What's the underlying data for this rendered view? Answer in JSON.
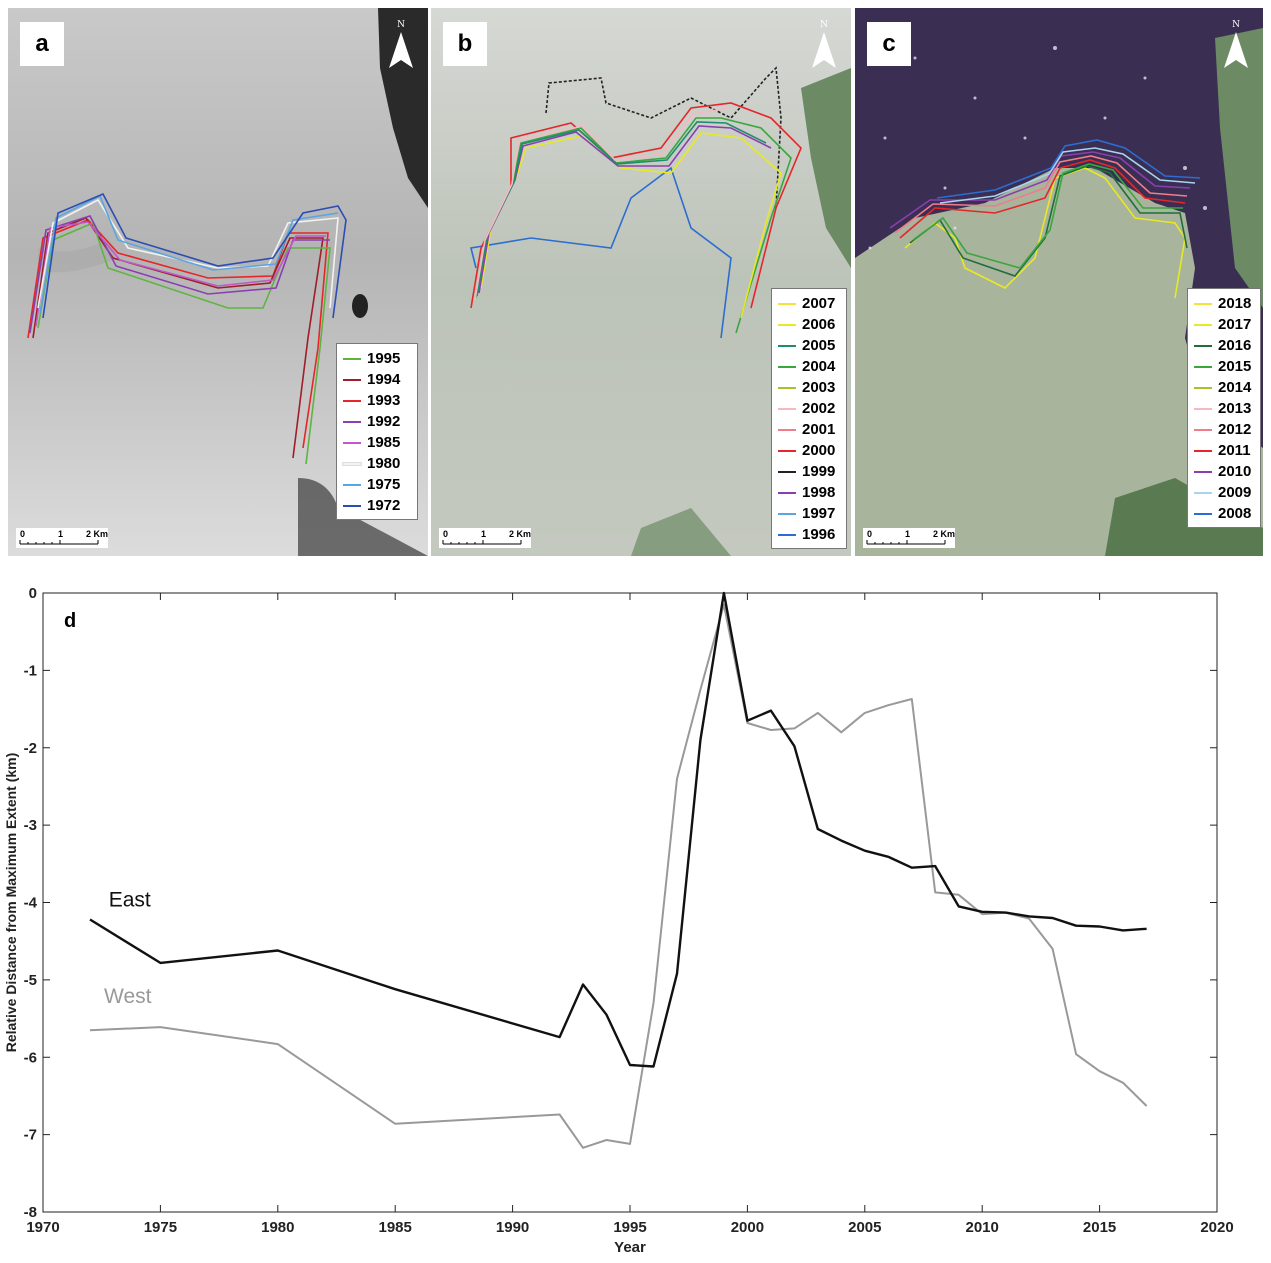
{
  "panels": [
    {
      "letter": "a",
      "north_label": "N",
      "legend": [
        {
          "label": "1995",
          "color": "#5fb441"
        },
        {
          "label": "1994",
          "color": "#a01e28"
        },
        {
          "label": "1993",
          "color": "#e6262a"
        },
        {
          "label": "1992",
          "color": "#8a3fb0"
        },
        {
          "label": "1985",
          "color": "#c058c8"
        },
        {
          "label": "1980",
          "color": "#f2f2f2"
        },
        {
          "label": "1975",
          "color": "#5aa6e0"
        },
        {
          "label": "1972",
          "color": "#2b4db5"
        }
      ],
      "scale": {
        "labels": [
          "0",
          "1",
          "2 Km"
        ]
      }
    },
    {
      "letter": "b",
      "north_label": "N",
      "legend": [
        {
          "label": "2007",
          "color": "#f4e23b"
        },
        {
          "label": "2006",
          "color": "#e8e825"
        },
        {
          "label": "2005",
          "color": "#1f8c6c"
        },
        {
          "label": "2004",
          "color": "#3aa640"
        },
        {
          "label": "2003",
          "color": "#a6c42a"
        },
        {
          "label": "2002",
          "color": "#f6b8c2"
        },
        {
          "label": "2001",
          "color": "#f07c8c"
        },
        {
          "label": "2000",
          "color": "#e6262a"
        },
        {
          "label": "1999",
          "color": "#222222"
        },
        {
          "label": "1998",
          "color": "#8a3fb0"
        },
        {
          "label": "1997",
          "color": "#5aa6e0"
        },
        {
          "label": "1996",
          "color": "#2b6dd0"
        }
      ],
      "scale": {
        "labels": [
          "0",
          "1",
          "2 Km"
        ]
      }
    },
    {
      "letter": "c",
      "north_label": "N",
      "legend": [
        {
          "label": "2018",
          "color": "#f4e23b"
        },
        {
          "label": "2017",
          "color": "#e8e825"
        },
        {
          "label": "2016",
          "color": "#1f6e3c"
        },
        {
          "label": "2015",
          "color": "#3aa640"
        },
        {
          "label": "2014",
          "color": "#a6c42a"
        },
        {
          "label": "2013",
          "color": "#f6b8c2"
        },
        {
          "label": "2012",
          "color": "#f07c8c"
        },
        {
          "label": "2011",
          "color": "#e6262a"
        },
        {
          "label": "2010",
          "color": "#8a3fb0"
        },
        {
          "label": "2009",
          "color": "#a8d4f0"
        },
        {
          "label": "2008",
          "color": "#2b6dd0"
        }
      ],
      "scale": {
        "labels": [
          "0",
          "1",
          "2 Km"
        ]
      }
    }
  ],
  "chart_data": {
    "type": "line",
    "panel_letter": "d",
    "xlabel": "Year",
    "ylabel": "Relative Distance from Maximum Extent (km)",
    "xlim": [
      1970,
      2020
    ],
    "ylim": [
      -8,
      0
    ],
    "xticks": [
      1970,
      1975,
      1980,
      1985,
      1990,
      1995,
      2000,
      2005,
      2010,
      2015,
      2020
    ],
    "yticks": [
      0,
      -1,
      -2,
      -3,
      -4,
      -5,
      -6,
      -7,
      -8
    ],
    "grid": false,
    "legend": "inline labels",
    "series": [
      {
        "name": "East",
        "color": "#111111",
        "label_at": [
          1972.8,
          -4.05
        ],
        "points": [
          [
            1972,
            -4.22
          ],
          [
            1975,
            -4.78
          ],
          [
            1980,
            -4.62
          ],
          [
            1985,
            -5.12
          ],
          [
            1992,
            -5.74
          ],
          [
            1993,
            -5.06
          ],
          [
            1994,
            -5.45
          ],
          [
            1995,
            -6.1
          ],
          [
            1996,
            -6.12
          ],
          [
            1997,
            -4.92
          ],
          [
            1998,
            -1.9
          ],
          [
            1999,
            0.0
          ],
          [
            2000,
            -1.65
          ],
          [
            2001,
            -1.52
          ],
          [
            2002,
            -1.98
          ],
          [
            2003,
            -3.05
          ],
          [
            2004,
            -3.2
          ],
          [
            2005,
            -3.33
          ],
          [
            2006,
            -3.41
          ],
          [
            2007,
            -3.55
          ],
          [
            2008,
            -3.53
          ],
          [
            2009,
            -4.05
          ],
          [
            2010,
            -4.12
          ],
          [
            2011,
            -4.13
          ],
          [
            2012,
            -4.18
          ],
          [
            2013,
            -4.2
          ],
          [
            2014,
            -4.3
          ],
          [
            2015,
            -4.31
          ],
          [
            2016,
            -4.36
          ],
          [
            2017,
            -4.34
          ]
        ]
      },
      {
        "name": "West",
        "color": "#999999",
        "label_at": [
          1972.6,
          -5.3
        ],
        "points": [
          [
            1972,
            -5.65
          ],
          [
            1975,
            -5.61
          ],
          [
            1980,
            -5.83
          ],
          [
            1985,
            -6.86
          ],
          [
            1992,
            -6.74
          ],
          [
            1993,
            -7.17
          ],
          [
            1994,
            -7.07
          ],
          [
            1995,
            -7.12
          ],
          [
            1996,
            -5.3
          ],
          [
            1997,
            -2.4
          ],
          [
            1998,
            -1.25
          ],
          [
            1999,
            -0.15
          ],
          [
            2000,
            -1.68
          ],
          [
            2001,
            -1.77
          ],
          [
            2002,
            -1.75
          ],
          [
            2003,
            -1.55
          ],
          [
            2004,
            -1.8
          ],
          [
            2005,
            -1.55
          ],
          [
            2006,
            -1.45
          ],
          [
            2007,
            -1.37
          ],
          [
            2008,
            -3.87
          ],
          [
            2009,
            -3.9
          ],
          [
            2010,
            -4.15
          ],
          [
            2011,
            -4.13
          ],
          [
            2012,
            -4.21
          ],
          [
            2013,
            -4.6
          ],
          [
            2014,
            -5.96
          ],
          [
            2015,
            -6.18
          ],
          [
            2016,
            -6.33
          ],
          [
            2017,
            -6.63
          ]
        ]
      }
    ]
  }
}
